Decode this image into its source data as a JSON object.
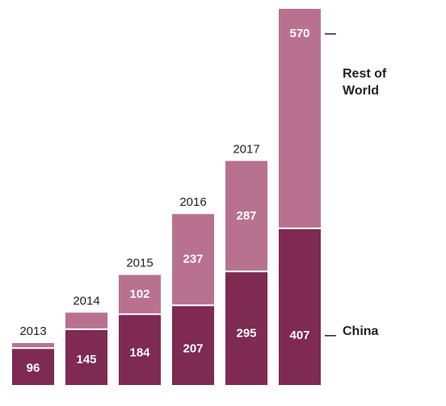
{
  "chart_data": {
    "type": "bar",
    "stacked": true,
    "categories": [
      "2013",
      "2014",
      "2015",
      "2016",
      "2017",
      ""
    ],
    "series": [
      {
        "name": "China",
        "values": [
          96,
          145,
          184,
          207,
          295,
          407
        ],
        "color": "#7e2a53"
      },
      {
        "name": "Rest of World",
        "values": [
          13,
          43,
          102,
          237,
          287,
          570
        ],
        "color": "#b8728f"
      }
    ],
    "value_labels": [
      [
        "96",
        "145",
        "184",
        "207",
        "295",
        "407"
      ],
      [
        "",
        "",
        "102",
        "237",
        "287",
        "570"
      ]
    ],
    "legend": {
      "placement": "right",
      "items": [
        {
          "label_lines": [
            "Rest of",
            "World"
          ],
          "series": "Rest of World"
        },
        {
          "label_lines": [
            "China"
          ],
          "series": "China"
        }
      ]
    },
    "grid": false,
    "ylim": [
      0,
      1000
    ]
  }
}
